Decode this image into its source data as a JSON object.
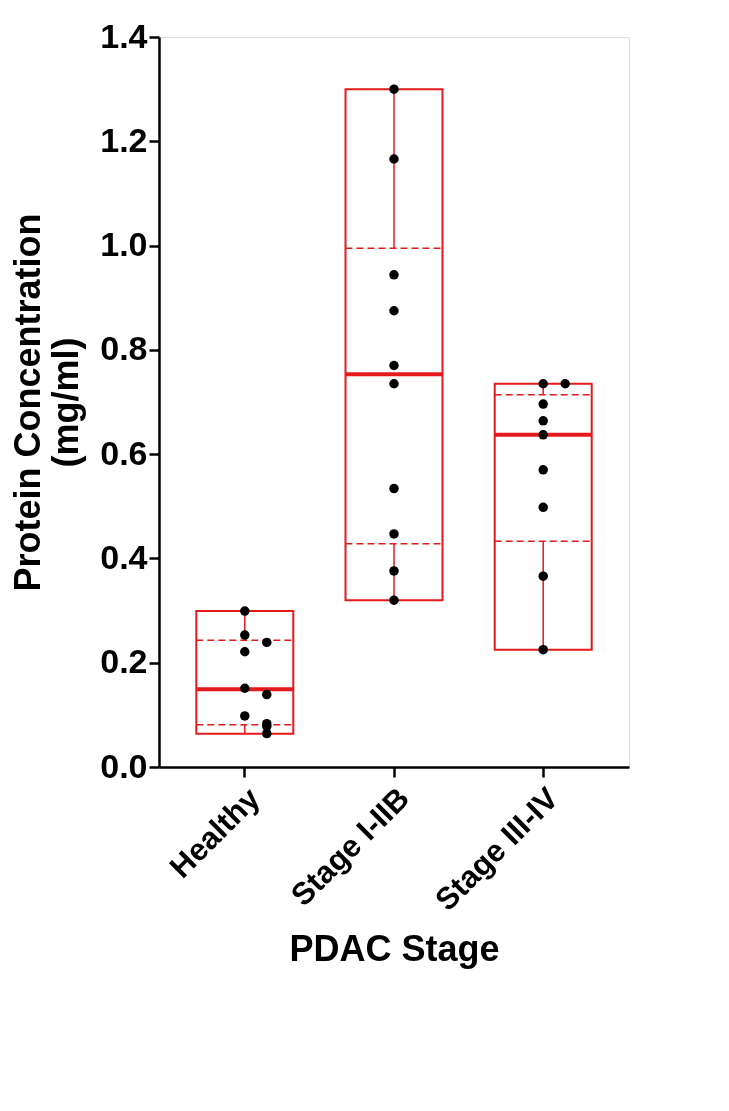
{
  "chart_data": {
    "type": "box",
    "xlabel": "PDAC Stage",
    "ylabel": "Protein  Concentration\n(mg/ml)",
    "categories": [
      "Healthy",
      "Stage I-IIB",
      "Stage III-IV"
    ],
    "series": [
      {
        "color": "#e41a1c",
        "boxes": [
          {
            "low": 0.064,
            "q1": 0.081,
            "median": 0.149,
            "q3": 0.243,
            "high": 0.299
          },
          {
            "low": 0.32,
            "q1": 0.428,
            "median": 0.753,
            "q3": 0.995,
            "high": 1.3
          },
          {
            "low": 0.225,
            "q1": 0.433,
            "median": 0.637,
            "q3": 0.714,
            "high": 0.735
          }
        ]
      },
      {
        "type": "scatter",
        "color": "#000000",
        "marker": "circle",
        "x": [
          "Healthy",
          "Healthy",
          "Healthy",
          "Healthy",
          "Healthy",
          "Healthy",
          "Healthy",
          "Healthy",
          "Healthy",
          "Healthy",
          "Stage I-IIB",
          "Stage I-IIB",
          "Stage I-IIB",
          "Stage I-IIB",
          "Stage I-IIB",
          "Stage I-IIB",
          "Stage I-IIB",
          "Stage I-IIB",
          "Stage I-IIB",
          "Stage I-IIB",
          "Stage III-IV",
          "Stage III-IV",
          "Stage III-IV",
          "Stage III-IV",
          "Stage III-IV",
          "Stage III-IV",
          "Stage III-IV",
          "Stage III-IV",
          "Stage III-IV"
        ],
        "values": [
          0.299,
          0.253,
          0.239,
          0.221,
          0.151,
          0.139,
          0.098,
          0.083,
          0.078,
          0.064,
          1.3,
          1.166,
          0.944,
          0.875,
          0.77,
          0.735,
          0.534,
          0.447,
          0.376,
          0.32,
          0.735,
          0.735,
          0.696,
          0.664,
          0.637,
          0.57,
          0.498,
          0.366,
          0.225
        ]
      }
    ],
    "ylim": [
      0,
      1.4
    ],
    "yticks": [
      {
        "value": 0,
        "label": "0.0"
      },
      {
        "value": 0.2,
        "label": "0.2"
      },
      {
        "value": 0.4,
        "label": "0.4"
      },
      {
        "value": 0.6,
        "label": "0.6"
      },
      {
        "value": 0.8,
        "label": "0.8"
      },
      {
        "value": 1.0,
        "label": "1.0"
      },
      {
        "value": 1.2,
        "label": "1.2"
      },
      {
        "value": 1.4,
        "label": "1.4"
      }
    ],
    "grid": false
  }
}
